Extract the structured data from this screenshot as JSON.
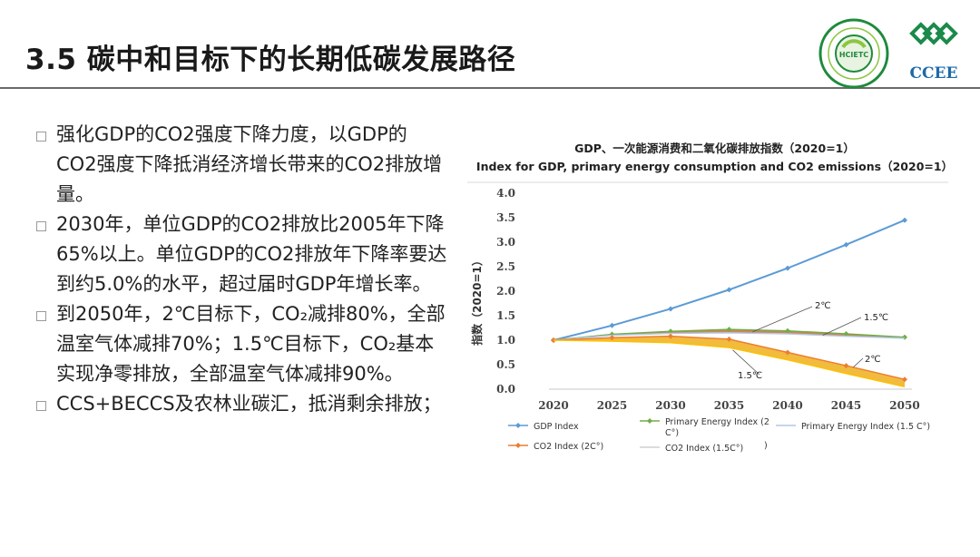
{
  "slide": {
    "title": "3.5 碳中和目标下的长期低碳发展路径",
    "logos": {
      "left_text": "HCIETC",
      "right_text": "CCEE"
    },
    "bullets": [
      "强化GDP的CO2强度下降力度，以GDP的CO2强度下降抵消经济增长带来的CO2排放增量。",
      "2030年，单位GDP的CO2排放比2005年下降65%以上。单位GDP的CO2排放年下降率要达到约5.0%的水平，超过届时GDP年增长率。",
      "到2050年，2℃目标下，CO₂减排80%，全部温室气体减排70%；1.5℃目标下，CO₂基本实现净零排放，全部温室气体减排90%。",
      "CCS+BECCS及农林业碳汇，抵消剩余排放；"
    ]
  },
  "chart_data": {
    "type": "line",
    "title": "GDP、一次能源消费和二氧化碳排放指数（2020=1）",
    "subtitle": "Index for GDP, primary energy consumption and CO2 emissions（2020=1）",
    "ylabel": "指数（2020=1）",
    "xlabel": "",
    "x": [
      2020,
      2025,
      2030,
      2035,
      2040,
      2045,
      2050
    ],
    "ylim": [
      0,
      4.0
    ],
    "yticks": [
      "0.0",
      "0.5",
      "1.0",
      "1.5",
      "2.0",
      "2.5",
      "3.0",
      "3.5",
      "4.0"
    ],
    "xticks": [
      "2020",
      "2025",
      "2030",
      "2035",
      "2040",
      "2045",
      "2050"
    ],
    "grid": false,
    "legend_position": "bottom",
    "series": [
      {
        "name": "GDP Index",
        "color": "#5b9bd5",
        "marker": "diamond",
        "values": [
          1.0,
          1.3,
          1.64,
          2.03,
          2.47,
          2.95,
          3.45
        ]
      },
      {
        "name": "Primary Energy Index (2 C°)",
        "color": "#70ad47",
        "marker": "diamond",
        "values": [
          1.0,
          1.12,
          1.18,
          1.22,
          1.19,
          1.13,
          1.06
        ]
      },
      {
        "name": "Primary Energy Index (1.5 C°)",
        "color": "#b4c7e7",
        "marker": "none",
        "values": [
          1.0,
          1.1,
          1.14,
          1.15,
          1.13,
          1.08,
          1.04
        ]
      },
      {
        "name": "CO2 Index (2C°)",
        "color": "#ed7d31",
        "marker": "diamond",
        "values": [
          1.0,
          1.05,
          1.08,
          1.02,
          0.75,
          0.48,
          0.2
        ]
      },
      {
        "name": "CO2 Index (1.5C°)",
        "color": "#ffc000",
        "marker": "none",
        "values": [
          1.0,
          0.98,
          0.95,
          0.85,
          0.6,
          0.32,
          0.05
        ]
      }
    ],
    "legend_labels": {
      "gdp": "GDP Index",
      "pe2_line1": "Primary Energy Index (2",
      "pe2_line2": "C°)",
      "pe15": "Primary Energy Index (1.5 C°)",
      "co2_2": "CO2 Index (2C°)",
      "co2_15": "CO2 Index (1.5C°)",
      "stray": ")"
    },
    "annotations": {
      "energy_2c": "2℃",
      "energy_15c": "1.5℃",
      "co2_2c": "2℃",
      "co2_15c": "1.5℃"
    }
  }
}
